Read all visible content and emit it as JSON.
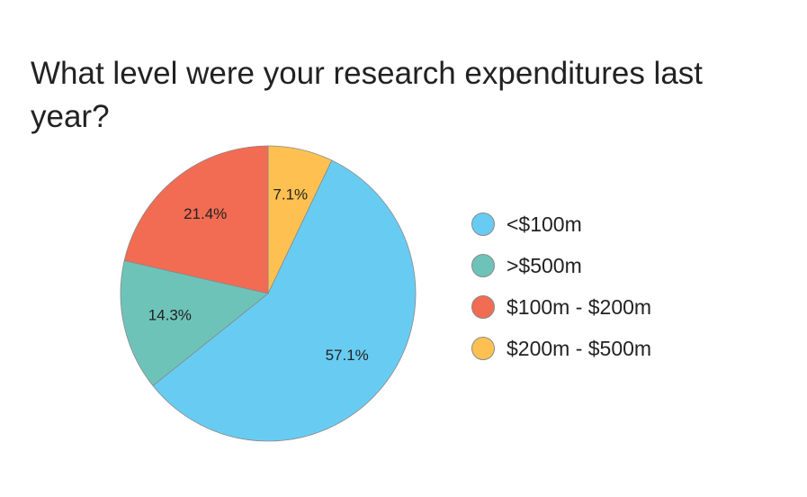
{
  "chart_data": {
    "type": "pie",
    "title": "What level were your research expenditures last year?",
    "slices": [
      {
        "label": "$200m - $500m",
        "value": 7.1,
        "display": "7.1%",
        "color": "#FEC151"
      },
      {
        "label": "<$100m",
        "value": 57.1,
        "display": "57.1%",
        "color": "#68CCF2"
      },
      {
        "label": ">$500m",
        "value": 14.3,
        "display": "14.3%",
        "color": "#6EC3B9"
      },
      {
        "label": "$100m - $200m",
        "value": 21.4,
        "display": "21.4%",
        "color": "#F26B53"
      }
    ],
    "legend": {
      "position": "right",
      "order": [
        "<$100m",
        ">$500m",
        "$100m - $200m",
        "$200m - $500m"
      ]
    },
    "start_angle_deg": 0,
    "direction": "clockwise"
  }
}
